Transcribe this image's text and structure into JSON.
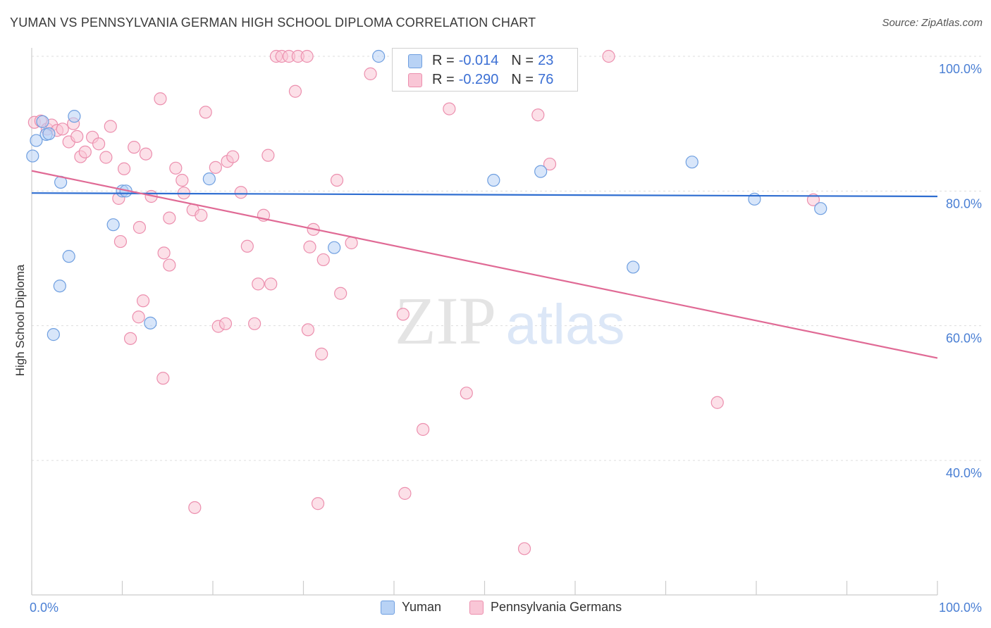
{
  "header": {
    "title": "YUMAN VS PENNSYLVANIA GERMAN HIGH SCHOOL DIPLOMA CORRELATION CHART",
    "source": "Source: ZipAtlas.com"
  },
  "watermark": {
    "zip": "ZIP",
    "atlas": "atlas"
  },
  "stats": [
    {
      "r_label": "R =",
      "r_value": "-0.014",
      "n_label": "N =",
      "n_value": "23"
    },
    {
      "r_label": "R =",
      "r_value": "-0.290",
      "n_label": "N =",
      "n_value": "76"
    }
  ],
  "legend": [
    {
      "label": "Yuman"
    },
    {
      "label": "Pennsylvania Germans"
    }
  ],
  "colors": {
    "yuman_fill": "#b8d2f5",
    "yuman_stroke": "#6f9fe0",
    "yuman_line": "#2f6ed1",
    "pg_fill": "#f9c6d6",
    "pg_stroke": "#ec8fae",
    "pg_line": "#e06a95",
    "axis_label": "#4a7fd4",
    "grid": "#dddddd"
  },
  "chart_data": {
    "type": "scatter",
    "title": "YUMAN VS PENNSYLVANIA GERMAN HIGH SCHOOL DIPLOMA CORRELATION CHART",
    "xlabel": "",
    "ylabel": "High School Diploma",
    "xlim": [
      0,
      100
    ],
    "ylim": [
      20,
      102
    ],
    "x_tick_labels": [
      "0.0%",
      "100.0%"
    ],
    "y_ticks": [
      {
        "value": 100,
        "label": "100.0%"
      },
      {
        "value": 80,
        "label": "80.0%"
      },
      {
        "value": 60,
        "label": "60.0%"
      },
      {
        "value": 40,
        "label": "40.0%"
      }
    ],
    "legend_position": "bottom-center",
    "series": [
      {
        "name": "Yuman",
        "R": -0.014,
        "N": 23,
        "trend": {
          "x": [
            0,
            100
          ],
          "y": [
            79.7,
            79.2
          ]
        },
        "points": [
          [
            0.1,
            85.2
          ],
          [
            0.5,
            87.5
          ],
          [
            1.2,
            90.3
          ],
          [
            1.6,
            88.4
          ],
          [
            1.9,
            88.5
          ],
          [
            3.2,
            81.3
          ],
          [
            4.7,
            91.1
          ],
          [
            10.0,
            80.0
          ],
          [
            10.4,
            80.0
          ],
          [
            9.0,
            75.0
          ],
          [
            4.1,
            70.3
          ],
          [
            3.1,
            65.9
          ],
          [
            2.4,
            58.7
          ],
          [
            13.1,
            60.4
          ],
          [
            19.6,
            81.8
          ],
          [
            33.4,
            71.6
          ],
          [
            38.3,
            100.0
          ],
          [
            51.0,
            81.6
          ],
          [
            56.2,
            82.9
          ],
          [
            66.4,
            68.7
          ],
          [
            72.9,
            84.3
          ],
          [
            79.8,
            78.8
          ],
          [
            87.1,
            77.4
          ]
        ]
      },
      {
        "name": "Pennsylvania Germans",
        "R": -0.29,
        "N": 76,
        "trend": {
          "x": [
            0,
            100
          ],
          "y": [
            83.0,
            55.2
          ]
        },
        "points": [
          [
            0.3,
            90.2
          ],
          [
            1.0,
            90.4
          ],
          [
            1.7,
            89.2
          ],
          [
            2.2,
            89.8
          ],
          [
            2.8,
            89.0
          ],
          [
            3.4,
            89.2
          ],
          [
            4.1,
            87.3
          ],
          [
            4.6,
            90.0
          ],
          [
            5.0,
            88.1
          ],
          [
            5.4,
            85.1
          ],
          [
            5.9,
            85.8
          ],
          [
            6.7,
            88.0
          ],
          [
            7.4,
            87.0
          ],
          [
            8.2,
            85.0
          ],
          [
            8.7,
            89.6
          ],
          [
            9.6,
            78.9
          ],
          [
            9.8,
            72.5
          ],
          [
            10.2,
            83.3
          ],
          [
            11.3,
            86.5
          ],
          [
            11.9,
            74.6
          ],
          [
            12.6,
            85.5
          ],
          [
            13.2,
            79.2
          ],
          [
            14.2,
            93.7
          ],
          [
            14.6,
            70.8
          ],
          [
            15.2,
            76.0
          ],
          [
            15.9,
            83.4
          ],
          [
            16.8,
            79.7
          ],
          [
            16.6,
            81.6
          ],
          [
            17.8,
            77.2
          ],
          [
            18.7,
            76.4
          ],
          [
            19.2,
            91.7
          ],
          [
            20.3,
            83.5
          ],
          [
            21.6,
            84.4
          ],
          [
            22.2,
            85.1
          ],
          [
            23.1,
            79.8
          ],
          [
            23.8,
            71.8
          ],
          [
            25.0,
            66.2
          ],
          [
            25.6,
            76.4
          ],
          [
            26.4,
            66.2
          ],
          [
            26.1,
            85.3
          ],
          [
            27.0,
            100.0
          ],
          [
            27.6,
            100.0
          ],
          [
            28.4,
            100.0
          ],
          [
            29.1,
            94.8
          ],
          [
            29.4,
            100.0
          ],
          [
            30.4,
            100.0
          ],
          [
            30.7,
            71.7
          ],
          [
            31.1,
            74.3
          ],
          [
            32.2,
            69.8
          ],
          [
            33.7,
            81.6
          ],
          [
            34.1,
            64.8
          ],
          [
            35.3,
            72.3
          ],
          [
            37.4,
            97.4
          ],
          [
            41.0,
            61.7
          ],
          [
            43.2,
            44.6
          ],
          [
            46.1,
            92.2
          ],
          [
            48.0,
            50.0
          ],
          [
            55.9,
            91.3
          ],
          [
            57.2,
            84.0
          ],
          [
            63.7,
            100.0
          ],
          [
            75.7,
            48.6
          ],
          [
            86.3,
            78.7
          ],
          [
            10.9,
            58.1
          ],
          [
            11.8,
            61.3
          ],
          [
            12.3,
            63.7
          ],
          [
            14.5,
            52.2
          ],
          [
            20.6,
            59.9
          ],
          [
            21.4,
            60.3
          ],
          [
            24.6,
            60.3
          ],
          [
            30.5,
            59.4
          ],
          [
            32.0,
            55.8
          ],
          [
            18.0,
            33.0
          ],
          [
            31.6,
            33.6
          ],
          [
            41.2,
            35.1
          ],
          [
            54.4,
            26.9
          ],
          [
            15.2,
            69.0
          ]
        ]
      }
    ]
  }
}
